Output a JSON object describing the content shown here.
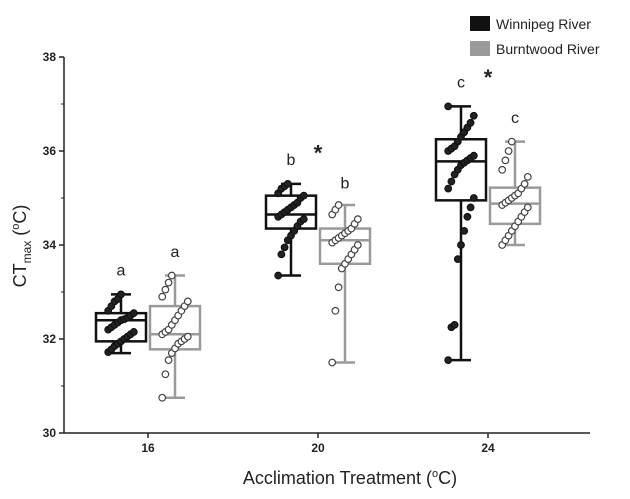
{
  "chart_data": {
    "type": "box",
    "title": "",
    "xlabel": "Acclimation Treatment (°C)",
    "xlabel_main": "Acclimation Treatment (",
    "xlabel_sup": "o",
    "xlabel_end": "C)",
    "ylabel_main": "CT",
    "ylabel_sub": "max",
    "ylabel_paren_open": " (",
    "ylabel_sup": "o",
    "ylabel_end": "C)",
    "ylim": [
      30,
      38
    ],
    "yticks": [
      30,
      32,
      34,
      36,
      38
    ],
    "categories": [
      "16",
      "20",
      "24"
    ],
    "legend_position": "top-right",
    "series": [
      {
        "name": "Winnipeg River",
        "color": "#111111",
        "marker_fill": "#222222",
        "boxes": [
          {
            "min": 31.7,
            "q1": 31.95,
            "median": 32.4,
            "q3": 32.55,
            "max": 32.95,
            "points": [
              31.72,
              31.78,
              31.85,
              31.9,
              31.95,
              32.0,
              32.05,
              32.1,
              32.15,
              32.2,
              32.25,
              32.3,
              32.35,
              32.4,
              32.42,
              32.45,
              32.5,
              32.55,
              32.6,
              32.7,
              32.8,
              32.85,
              32.95
            ]
          },
          {
            "min": 33.35,
            "q1": 34.35,
            "median": 34.65,
            "q3": 35.05,
            "max": 35.3,
            "points": [
              33.35,
              33.8,
              33.95,
              34.1,
              34.2,
              34.3,
              34.4,
              34.5,
              34.55,
              34.6,
              34.65,
              34.7,
              34.75,
              34.8,
              34.85,
              34.9,
              35.0,
              35.05,
              35.1,
              35.2,
              35.25,
              35.3
            ]
          },
          {
            "min": 31.55,
            "q1": 34.95,
            "median": 35.78,
            "q3": 36.25,
            "max": 36.95,
            "points": [
              31.55,
              32.25,
              32.3,
              33.7,
              34.0,
              34.3,
              34.6,
              34.8,
              35.0,
              35.2,
              35.35,
              35.5,
              35.6,
              35.7,
              35.75,
              35.8,
              35.85,
              35.9,
              36.0,
              36.05,
              36.1,
              36.2,
              36.3,
              36.4,
              36.5,
              36.6,
              36.75,
              36.95
            ]
          }
        ]
      },
      {
        "name": "Burntwood River",
        "color": "#9a9a9a",
        "marker_fill": "#ffffff",
        "boxes": [
          {
            "min": 30.75,
            "q1": 31.78,
            "median": 32.1,
            "q3": 32.7,
            "max": 33.35,
            "points": [
              30.75,
              31.25,
              31.55,
              31.7,
              31.8,
              31.9,
              31.95,
              32.0,
              32.05,
              32.1,
              32.15,
              32.2,
              32.3,
              32.4,
              32.5,
              32.6,
              32.7,
              32.8,
              32.9,
              33.05,
              33.2,
              33.35
            ]
          },
          {
            "min": 31.5,
            "q1": 33.6,
            "median": 34.1,
            "q3": 34.35,
            "max": 34.85,
            "points": [
              31.5,
              32.6,
              33.1,
              33.5,
              33.6,
              33.7,
              33.8,
              33.9,
              34.0,
              34.05,
              34.1,
              34.15,
              34.2,
              34.25,
              34.3,
              34.35,
              34.45,
              34.55,
              34.65,
              34.75,
              34.85
            ]
          },
          {
            "min": 34.0,
            "q1": 34.45,
            "median": 34.88,
            "q3": 35.22,
            "max": 36.2,
            "points": [
              34.0,
              34.1,
              34.2,
              34.3,
              34.4,
              34.5,
              34.6,
              34.7,
              34.8,
              34.85,
              34.9,
              34.95,
              35.0,
              35.05,
              35.1,
              35.2,
              35.3,
              35.45,
              35.6,
              35.8,
              36.0,
              36.2
            ]
          }
        ]
      }
    ],
    "letters": [
      {
        "group": 0,
        "series": 0,
        "text": "a",
        "y": 33.35
      },
      {
        "group": 0,
        "series": 1,
        "text": "a",
        "y": 33.75
      },
      {
        "group": 1,
        "series": 0,
        "text": "b",
        "y": 35.7
      },
      {
        "group": 1,
        "series": 1,
        "text": "b",
        "y": 35.2
      },
      {
        "group": 2,
        "series": 0,
        "text": "c",
        "y": 37.35
      },
      {
        "group": 2,
        "series": 1,
        "text": "c",
        "y": 36.6
      }
    ],
    "stars": [
      {
        "group": 1,
        "text": "*",
        "y": 35.8
      },
      {
        "group": 2,
        "text": "*",
        "y": 37.4
      }
    ]
  }
}
